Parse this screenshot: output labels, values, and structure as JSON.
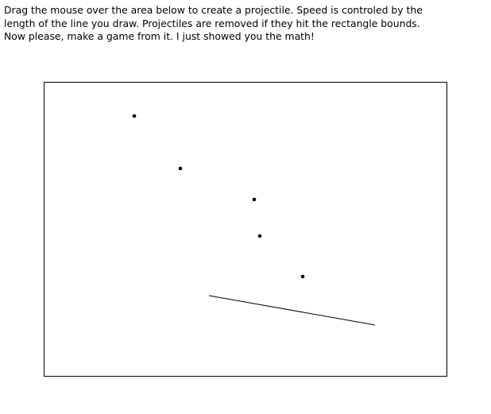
{
  "instructions": {
    "line1": "Drag the mouse over the area below to create a projectile. Speed is controled by the",
    "line2": "length of the line you draw. Projectiles are removed if they hit the rectangle bounds.",
    "line3": "Now please, make a game from it. I just showed you the math!"
  },
  "colors": {
    "background": "#ffffff",
    "ink": "#000000"
  }
}
